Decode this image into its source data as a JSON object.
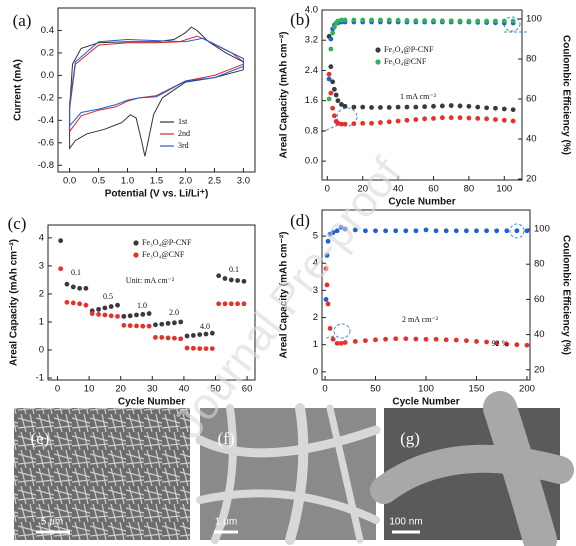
{
  "chart_data": [
    {
      "type": "line",
      "title": "(a)",
      "x_label": "Potential (V vs. Li/Li⁺)",
      "y_label": "Current (mA)",
      "xlim": [
        -0.2,
        3.2
      ],
      "ylim": [
        -0.86,
        0.6
      ],
      "xticks": [
        {
          "value": 0,
          "label": "0.0"
        },
        0.5,
        {
          "value": 1,
          "label": "1.0"
        },
        1.5,
        {
          "value": 2,
          "label": "2.0"
        },
        2.5,
        {
          "value": 3,
          "label": "3.0"
        }
      ],
      "yticks": [
        -0.8,
        -0.6,
        -0.4,
        -0.2,
        {
          "value": 0,
          "label": "0.0"
        },
        0.2,
        0.4
      ],
      "series": [
        {
          "name": "1st",
          "color": "#333333",
          "x": [
            3.0,
            2.5,
            2.0,
            1.6,
            1.45,
            1.35,
            1.3,
            1.25,
            1.15,
            1.05,
            0.9,
            0.6,
            0.3,
            0.1,
            0.0,
            0.0,
            0.05,
            0.2,
            0.5,
            1.0,
            1.5,
            1.8,
            2.0,
            2.1,
            2.2,
            2.4,
            2.7,
            3.0,
            3.0
          ],
          "values": [
            0.05,
            -0.02,
            -0.06,
            -0.2,
            -0.35,
            -0.6,
            -0.72,
            -0.6,
            -0.38,
            -0.35,
            -0.42,
            -0.48,
            -0.52,
            -0.58,
            -0.65,
            -0.3,
            0.1,
            0.24,
            0.29,
            0.3,
            0.3,
            0.32,
            0.38,
            0.43,
            0.4,
            0.3,
            0.2,
            0.12,
            0.05
          ]
        },
        {
          "name": "2nd",
          "color": "#d62728",
          "x": [
            3.0,
            2.5,
            2.0,
            1.5,
            1.2,
            1.0,
            0.8,
            0.5,
            0.2,
            0.0,
            0.0,
            0.1,
            0.5,
            1.0,
            1.5,
            1.9,
            2.2,
            2.5,
            2.8,
            3.0,
            3.0
          ],
          "values": [
            0.1,
            0.0,
            -0.05,
            -0.18,
            -0.2,
            -0.23,
            -0.28,
            -0.31,
            -0.36,
            -0.5,
            -0.3,
            0.1,
            0.27,
            0.29,
            0.29,
            0.3,
            0.35,
            0.28,
            0.2,
            0.12,
            0.1
          ]
        },
        {
          "name": "3rd",
          "color": "#1f5fd6",
          "x": [
            3.0,
            2.5,
            2.0,
            1.5,
            1.2,
            1.0,
            0.8,
            0.5,
            0.2,
            0.0,
            0.0,
            0.1,
            0.5,
            1.0,
            1.5,
            2.0,
            2.3,
            2.6,
            3.0,
            3.0
          ],
          "values": [
            0.08,
            -0.02,
            -0.05,
            -0.19,
            -0.2,
            -0.22,
            -0.26,
            -0.3,
            -0.33,
            -0.45,
            -0.25,
            0.12,
            0.3,
            0.32,
            0.31,
            0.3,
            0.33,
            0.25,
            0.15,
            0.08
          ]
        }
      ]
    },
    {
      "type": "scatter",
      "title": "(b)",
      "x_label": "Cycle Number",
      "y_label": "Areal Capacity (mAh cm⁻²)",
      "y2_label": "Coulombic Efficiency (%)",
      "xlim": [
        -3,
        110
      ],
      "ylim": [
        -0.5,
        4.0
      ],
      "y2lim": [
        19.5,
        104.5
      ],
      "xticks": [
        0,
        20,
        40,
        60,
        80,
        100
      ],
      "yticks": [
        {
          "value": 0,
          "label": "0.0"
        },
        0.8,
        1.6,
        2.4,
        3.2,
        {
          "value": 4,
          "label": "4.0"
        }
      ],
      "y2ticks": [
        20,
        40,
        60,
        80,
        100
      ],
      "x": [
        1,
        2,
        3,
        4,
        5,
        6,
        8,
        10,
        15,
        20,
        25,
        30,
        35,
        40,
        45,
        50,
        55,
        60,
        65,
        70,
        75,
        80,
        85,
        90,
        95,
        100,
        105
      ],
      "series": [
        {
          "name": "Fe₃O₄@P-CNF",
          "color": "#3a3a3a",
          "values": [
            3.3,
            2.5,
            2.1,
            1.9,
            1.75,
            1.6,
            1.5,
            1.45,
            1.43,
            1.43,
            1.42,
            1.42,
            1.42,
            1.43,
            1.43,
            1.43,
            1.44,
            1.45,
            1.46,
            1.47,
            1.46,
            1.45,
            1.43,
            1.41,
            1.4,
            1.38,
            1.36
          ]
        },
        {
          "color": "#e8302a",
          "values": [
            2.3,
            1.8,
            1.4,
            1.2,
            1.05,
            1.0,
            0.98,
            0.98,
            0.99,
            1.0,
            1.0,
            1.02,
            1.04,
            1.06,
            1.08,
            1.1,
            1.12,
            1.13,
            1.15,
            1.15,
            1.15,
            1.14,
            1.13,
            1.12,
            1.1,
            1.08,
            1.06
          ]
        },
        {
          "color": "#1f5fd6",
          "axis": "y2",
          "values": [
            70,
            90,
            95,
            97,
            98,
            98,
            98.5,
            98.5,
            98.5,
            98.5,
            98.5,
            98.5,
            98.5,
            98.5,
            98.5,
            98.5,
            98.5,
            98.5,
            98.5,
            98.5,
            98.5,
            98.5,
            98.3,
            98.2,
            98.1,
            98,
            98
          ]
        },
        {
          "name": "Fe₃O₄@CNF",
          "color": "#2db35a",
          "axis": "y2",
          "values": [
            60,
            85,
            93,
            96,
            98,
            99,
            99.5,
            99.5,
            99.5,
            99.5,
            99.5,
            99.5,
            99.5,
            99.4,
            99.3,
            99.2,
            99.2,
            99.2,
            99.1,
            99.1,
            99,
            99,
            99,
            99,
            99,
            99,
            99
          ]
        }
      ],
      "annotations": [
        "1 mA cm⁻²"
      ]
    },
    {
      "type": "scatter",
      "title": "(c)",
      "x_label": "Cycle Number",
      "y_label": "Areal Capacity (mAh cm⁻²)",
      "xlim": [
        -3,
        62.5
      ],
      "ylim": [
        -1.07,
        4.46
      ],
      "xticks": [
        0,
        10,
        20,
        30,
        40,
        50,
        60
      ],
      "yticks": [
        -1,
        0,
        1,
        2,
        3,
        4
      ],
      "x": [
        1,
        3,
        5,
        7,
        9,
        11,
        13,
        15,
        17,
        19,
        21,
        23,
        25,
        27,
        29,
        31,
        33,
        35,
        37,
        39,
        41,
        43,
        45,
        47,
        49,
        51,
        53,
        55,
        57,
        59
      ],
      "series": [
        {
          "name": "Fe₃O₄@P-CNF",
          "color": "#3a3a3a",
          "values": [
            3.9,
            2.35,
            2.25,
            2.2,
            2.2,
            1.4,
            1.45,
            1.5,
            1.55,
            1.6,
            1.2,
            1.22,
            1.25,
            1.27,
            1.3,
            0.9,
            0.92,
            0.95,
            0.97,
            1.0,
            0.5,
            0.52,
            0.55,
            0.57,
            0.6,
            2.65,
            2.55,
            2.5,
            2.48,
            2.45
          ]
        },
        {
          "name": "Fe₃O₄@CNF",
          "color": "#e8302a",
          "values": [
            2.9,
            1.7,
            1.68,
            1.65,
            1.6,
            1.3,
            1.27,
            1.25,
            1.22,
            1.2,
            0.88,
            0.87,
            0.86,
            0.85,
            0.85,
            0.45,
            0.45,
            0.43,
            0.42,
            0.4,
            0.07,
            0.06,
            0.05,
            0.05,
            0.05,
            1.65,
            1.65,
            1.65,
            1.65,
            1.65
          ]
        }
      ],
      "annotations": [
        "0.1",
        "0.5",
        "1.0",
        "2.0",
        "4.0",
        "0.1",
        "Unit: mA cm⁻²"
      ]
    },
    {
      "type": "scatter",
      "title": "(d)",
      "x_label": "Cycle Number",
      "y_label": "Areal Capacity (mAh cm⁻²)",
      "y2_label": "Coulombic Efficiency (%)",
      "xlim": [
        -3,
        203
      ],
      "ylim": [
        -0.3,
        5.96
      ],
      "y2lim": [
        14.2,
        110.8
      ],
      "xticks": [
        0,
        50,
        100,
        150,
        200
      ],
      "yticks": [
        0,
        1,
        2,
        3,
        4,
        5
      ],
      "y2ticks": [
        20,
        40,
        60,
        80,
        100
      ],
      "x": [
        1,
        2,
        3,
        5,
        8,
        12,
        16,
        20,
        30,
        40,
        50,
        60,
        70,
        80,
        90,
        100,
        110,
        120,
        130,
        140,
        150,
        160,
        170,
        180,
        190,
        200
      ],
      "series": [
        {
          "color": "#e8302a",
          "values": [
            3.8,
            3.2,
            2.5,
            1.6,
            1.2,
            1.05,
            1.05,
            1.08,
            1.12,
            1.15,
            1.18,
            1.2,
            1.22,
            1.22,
            1.21,
            1.2,
            1.2,
            1.18,
            1.17,
            1.15,
            1.12,
            1.1,
            1.06,
            1.02,
            1.0,
            0.98
          ]
        },
        {
          "color": "#1f5fd6",
          "axis": "y2",
          "values": [
            60,
            85,
            93,
            97,
            98,
            99,
            101,
            100,
            99.5,
            99,
            99,
            99,
            99,
            99,
            99,
            99.5,
            99,
            99,
            99,
            99,
            99,
            99,
            99,
            99,
            99,
            99
          ]
        }
      ],
      "annotations": [
        "2 mA cm⁻²",
        "92 %"
      ]
    }
  ],
  "images": [
    {
      "label": "(e)",
      "scale": "5 μm"
    },
    {
      "label": "(f)",
      "scale": "1 μm"
    },
    {
      "label": "(g)",
      "scale": "100 nm"
    }
  ],
  "watermark": "Journal Pre-proof"
}
